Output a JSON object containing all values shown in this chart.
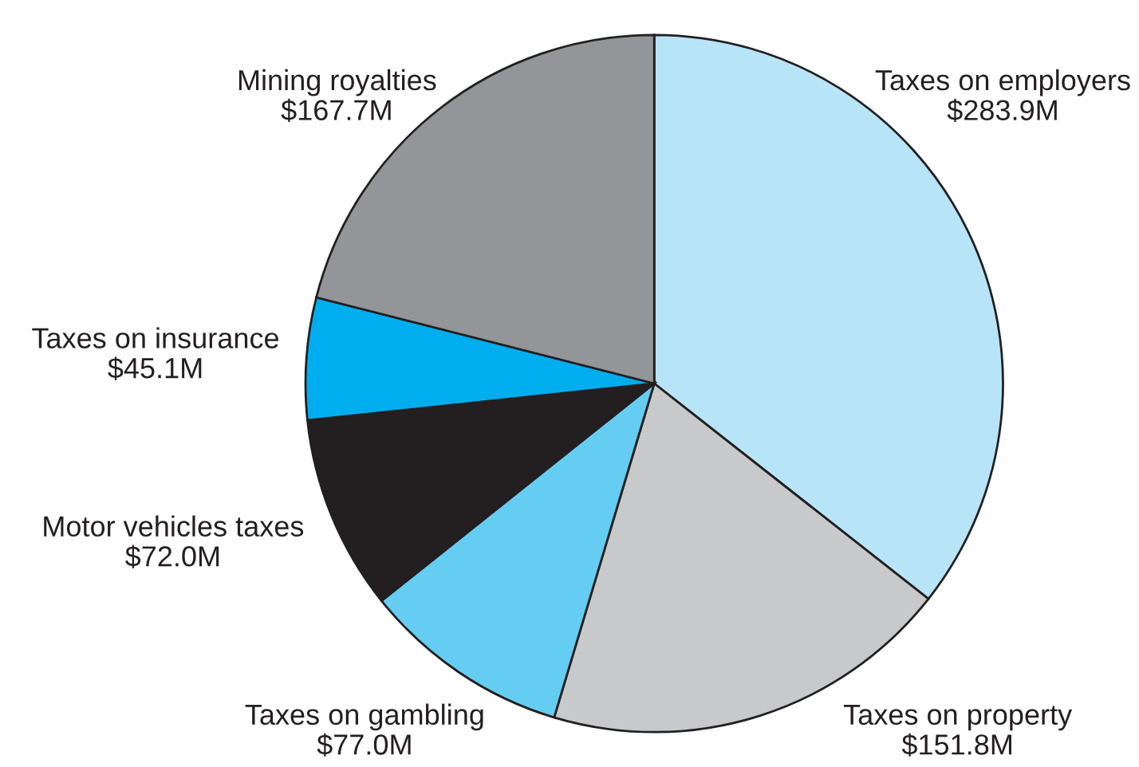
{
  "chart_data": {
    "type": "pie",
    "categories": [
      "Taxes on employers",
      "Taxes on property",
      "Taxes on gambling",
      "Motor vehicles taxes",
      "Taxes on insurance",
      "Mining royalties"
    ],
    "values": [
      283.9,
      151.8,
      77.0,
      72.0,
      45.1,
      167.7
    ],
    "value_labels": [
      "$283.9M",
      "$151.8M",
      "$77.0M",
      "$72.0M",
      "$45.1M",
      "$167.7M"
    ],
    "colors": [
      "#b8e4f8",
      "#c8c9cb",
      "#66cdf2",
      "#231f20",
      "#00aeef",
      "#939598"
    ]
  }
}
